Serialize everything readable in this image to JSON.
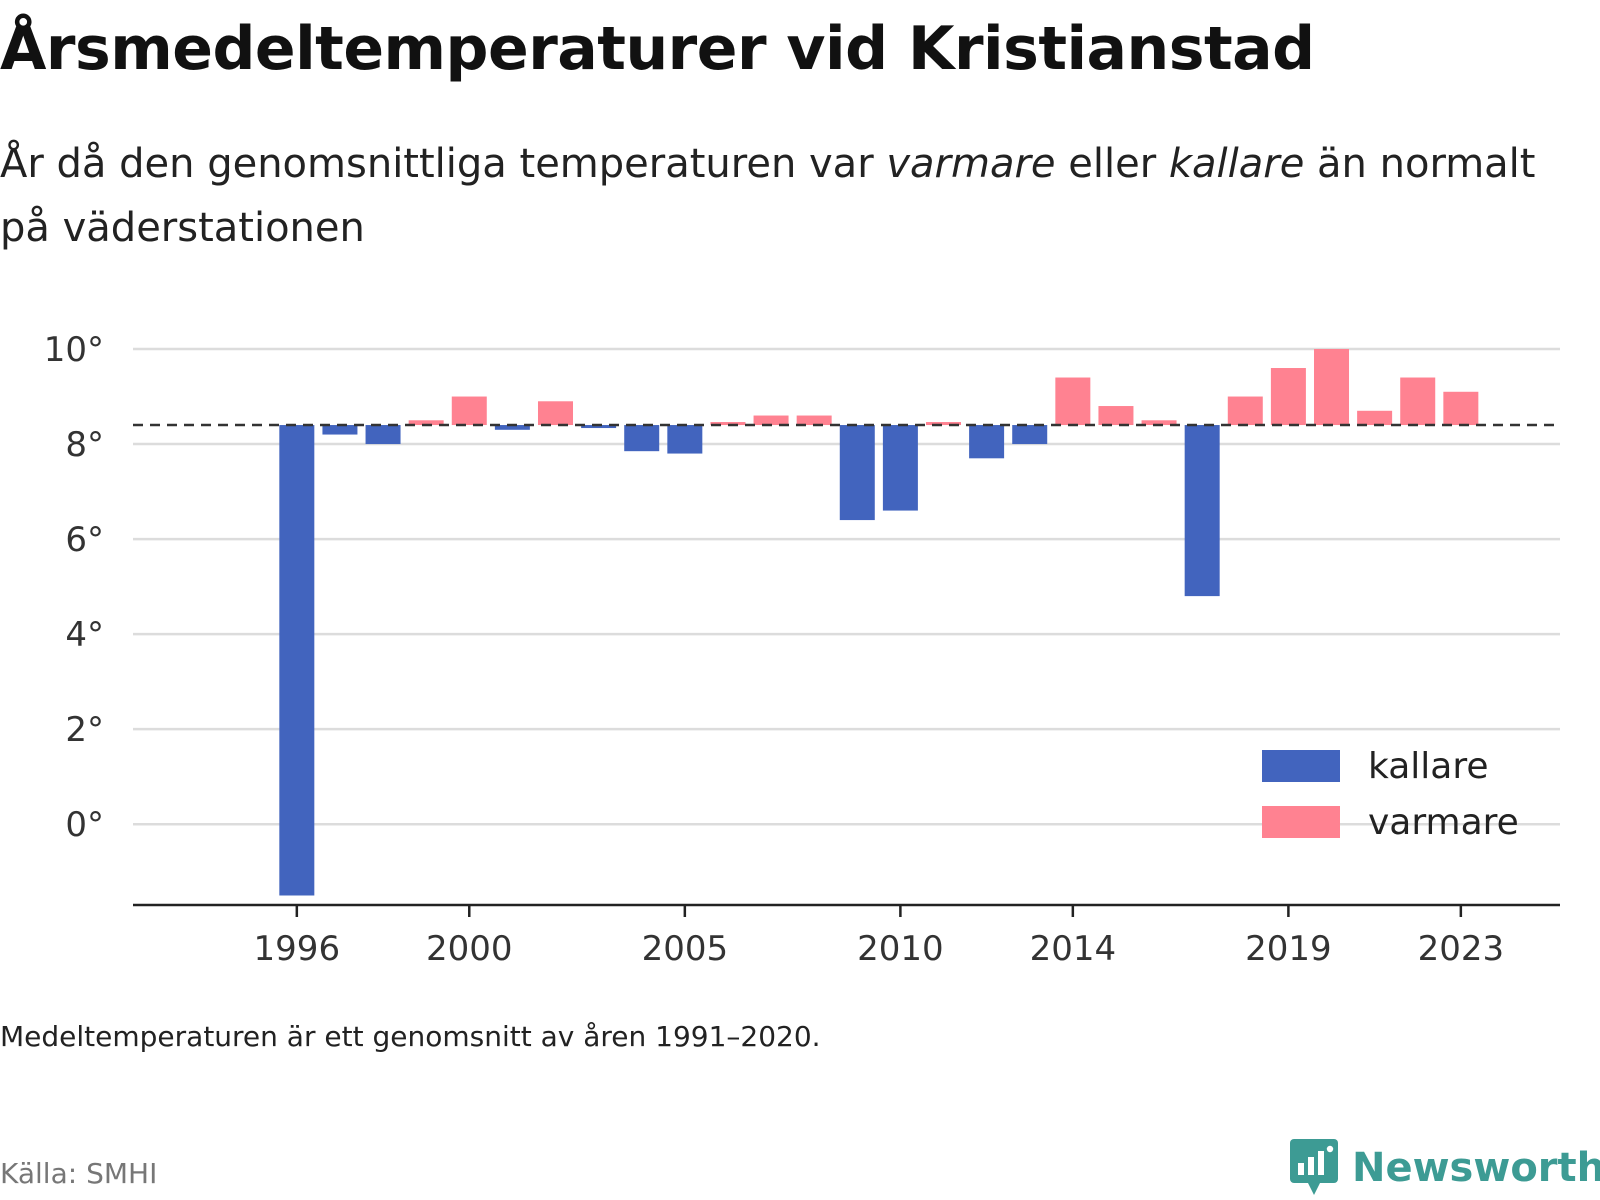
{
  "header": {
    "title": "Årsmedeltemperaturer vid Kristianstad",
    "subtitle_pre": "År då den genomsnittliga temperaturen var ",
    "subtitle_em1": "varmare",
    "subtitle_mid": " eller ",
    "subtitle_em2": "kallare",
    "subtitle_post": " än normalt på väderstationen"
  },
  "footer": {
    "note": "Medeltemperaturen är ett genomsnitt av åren 1991–2020.",
    "source": "Källa: SMHI",
    "brand": "Newsworthy"
  },
  "colors": {
    "kallare": "#4264be",
    "varmare": "#ff8291",
    "grid": "#dcdcdc",
    "axis": "#222222",
    "brand": "#3d9b94"
  },
  "chart_data": {
    "type": "bar",
    "title": "Årsmedeltemperaturer vid Kristianstad",
    "baseline": 8.4,
    "baseline_style": "dashed",
    "ylim": [
      -1.7,
      10.4
    ],
    "yticks": [
      0,
      2,
      4,
      6,
      8,
      10
    ],
    "ytick_labels": [
      "0°",
      "2°",
      "4°",
      "6°",
      "8°",
      "10°"
    ],
    "xticks": [
      1996,
      2000,
      2005,
      2010,
      2014,
      2019,
      2023
    ],
    "xtick_labels": [
      "1996",
      "2000",
      "2005",
      "2010",
      "2014",
      "2019",
      "2023"
    ],
    "xlim": [
      1992.2,
      2025.3
    ],
    "grid": true,
    "legend_position": "bottom-right",
    "series": [
      {
        "name": "kallare",
        "color_key": "kallare"
      },
      {
        "name": "varmare",
        "color_key": "varmare"
      }
    ],
    "points": [
      {
        "year": 1996,
        "value": -1.5
      },
      {
        "year": 1997,
        "value": 8.2
      },
      {
        "year": 1998,
        "value": 8.0
      },
      {
        "year": 1999,
        "value": 8.5
      },
      {
        "year": 2000,
        "value": 9.0
      },
      {
        "year": 2001,
        "value": 8.3
      },
      {
        "year": 2002,
        "value": 8.9
      },
      {
        "year": 2003,
        "value": 8.35
      },
      {
        "year": 2004,
        "value": 7.85
      },
      {
        "year": 2005,
        "value": 7.8
      },
      {
        "year": 2006,
        "value": 8.4
      },
      {
        "year": 2007,
        "value": 8.6
      },
      {
        "year": 2008,
        "value": 8.6
      },
      {
        "year": 2009,
        "value": 6.4
      },
      {
        "year": 2010,
        "value": 6.6
      },
      {
        "year": 2011,
        "value": 8.4
      },
      {
        "year": 2012,
        "value": 7.7
      },
      {
        "year": 2013,
        "value": 8.0
      },
      {
        "year": 2014,
        "value": 9.4
      },
      {
        "year": 2015,
        "value": 8.8
      },
      {
        "year": 2016,
        "value": 8.5
      },
      {
        "year": 2017,
        "value": 4.8
      },
      {
        "year": 2018,
        "value": 9.0
      },
      {
        "year": 2019,
        "value": 9.6
      },
      {
        "year": 2020,
        "value": 10.0
      },
      {
        "year": 2021,
        "value": 8.7
      },
      {
        "year": 2022,
        "value": 9.4
      },
      {
        "year": 2023,
        "value": 9.1
      }
    ]
  }
}
